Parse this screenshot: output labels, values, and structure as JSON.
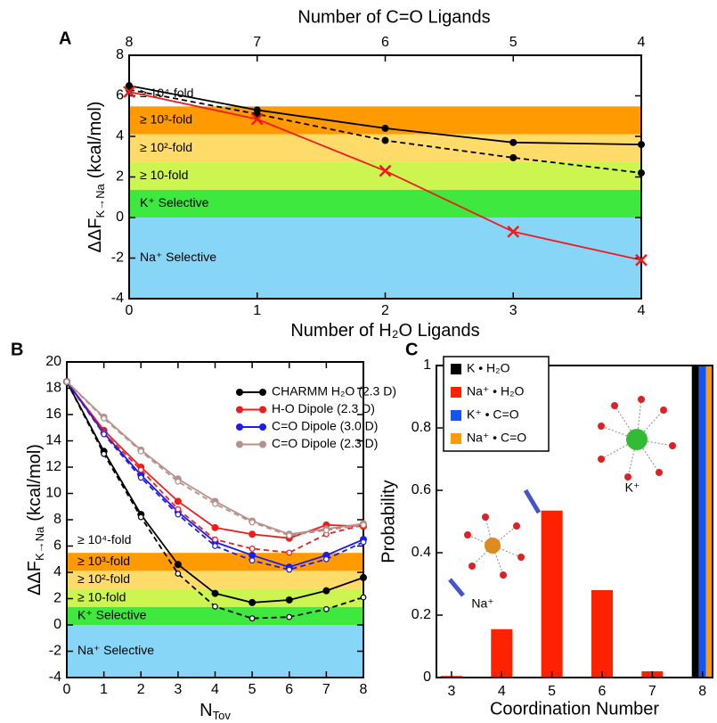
{
  "chart_data": [
    {
      "type": "line",
      "panel_label": "A",
      "x2label": "Number of C=O Ligands",
      "xlabel": "Number of H₂O Ligands",
      "ylabel": "ΔΔF",
      "ylabel_sub": "K→Na",
      "ylabel_unit": "(kcal/mol)",
      "x": [
        0,
        1,
        2,
        3,
        4
      ],
      "xlim": [
        0,
        4
      ],
      "xticks": [
        0,
        1,
        2,
        3,
        4
      ],
      "x2ticks": [
        {
          "value": 0,
          "label": "8"
        },
        {
          "value": 1,
          "label": "7"
        },
        {
          "value": 2,
          "label": "6"
        },
        {
          "value": 3,
          "label": "5"
        },
        {
          "value": 4,
          "label": "4"
        }
      ],
      "ylim": [
        -4,
        8
      ],
      "yticks": [
        -4,
        -2,
        0,
        2,
        4,
        6,
        8
      ],
      "bands": [
        {
          "label": "Na⁺ Selective",
          "from": -4,
          "to": 0,
          "color": "#87d5f7"
        },
        {
          "label": "K⁺ Selective",
          "from": 0,
          "to": 1.37,
          "color": "#3ee83e"
        },
        {
          "label": "≥ 10-fold",
          "from": 1.37,
          "to": 2.74,
          "color": "#cdf550"
        },
        {
          "label": "≥ 10²-fold",
          "from": 2.74,
          "to": 4.11,
          "color": "#ffdc6a"
        },
        {
          "label": "≥ 10³-fold",
          "from": 4.11,
          "to": 5.48,
          "color": "#ff9a00"
        },
        {
          "label": "≥ 10⁴-fold",
          "from": 5.48,
          "to": null,
          "color": null
        }
      ],
      "series": [
        {
          "color": "#000000",
          "marker": "circle",
          "line_style": "solid",
          "values": [
            6.5,
            5.3,
            4.4,
            3.7,
            3.6
          ]
        },
        {
          "color": "#000000",
          "marker": "circle",
          "line_style": "dashed",
          "values": [
            6.3,
            5.1,
            3.8,
            2.95,
            2.2
          ]
        },
        {
          "color": "#ee1c1c",
          "marker": "x",
          "line_style": "solid",
          "values": [
            6.2,
            4.85,
            2.3,
            -0.7,
            -2.1
          ]
        }
      ]
    },
    {
      "type": "line",
      "panel_label": "B",
      "xlabel": "N",
      "xlabel_sub": "Tov",
      "ylabel": "ΔΔF",
      "ylabel_sub": "K→Na",
      "ylabel_unit": "(kcal/mol)",
      "x": [
        0,
        1,
        2,
        3,
        4,
        5,
        6,
        7,
        8
      ],
      "xlim": [
        0,
        8
      ],
      "xticks": [
        0,
        1,
        2,
        3,
        4,
        5,
        6,
        7,
        8
      ],
      "ylim": [
        -4,
        20
      ],
      "yticks": [
        -4,
        -2,
        0,
        2,
        4,
        6,
        8,
        10,
        12,
        14,
        16,
        18,
        20
      ],
      "bands": [
        {
          "label": "Na⁺ Selective",
          "from": -4,
          "to": 0,
          "color": "#87d5f7"
        },
        {
          "label": "K⁺ Selective",
          "from": 0,
          "to": 1.37,
          "color": "#3ee83e"
        },
        {
          "label": "≥ 10-fold",
          "from": 1.37,
          "to": 2.74,
          "color": "#cdf550"
        },
        {
          "label": "≥ 10²-fold",
          "from": 2.74,
          "to": 4.11,
          "color": "#ffdc6a"
        },
        {
          "label": "≥ 10³-fold",
          "from": 4.11,
          "to": 5.48,
          "color": "#ff9a00"
        },
        {
          "label": "≥ 10⁴-fold",
          "from": 5.48,
          "to": null,
          "color": null
        }
      ],
      "legend": "upper right",
      "series": [
        {
          "name": "CHARMM H₂O (2.3 D)",
          "color": "#000000",
          "marker": "circle",
          "line_style": "solid",
          "values": [
            18.5,
            13.2,
            8.4,
            4.6,
            2.4,
            1.7,
            1.9,
            2.6,
            3.6
          ]
        },
        {
          "name": "H-O Dipole (2.3 D)",
          "color": "#ee1c1c",
          "marker": "circle",
          "line_style": "solid",
          "values": [
            18.5,
            14.8,
            12.0,
            9.4,
            7.4,
            6.9,
            6.6,
            7.6,
            7.5
          ]
        },
        {
          "name": "C=O Dipole (3.0 D)",
          "color": "#1c1cee",
          "marker": "circle",
          "line_style": "solid",
          "values": [
            18.5,
            14.6,
            11.4,
            8.6,
            6.3,
            5.3,
            4.4,
            5.3,
            6.5
          ]
        },
        {
          "name": "C=O Dipole (2.3 D)",
          "color": "#b8908a",
          "marker": "circle",
          "line_style": "solid",
          "values": [
            18.5,
            15.8,
            13.3,
            11.1,
            9.4,
            7.9,
            6.9,
            7.3,
            7.7
          ]
        },
        {
          "color": "#000000",
          "marker": "open-circle",
          "line_style": "dashed",
          "values": [
            18.5,
            13.0,
            8.2,
            3.9,
            1.4,
            0.5,
            0.6,
            1.2,
            2.1
          ]
        },
        {
          "color": "#ee1c1c",
          "marker": "open-circle",
          "line_style": "dashed",
          "values": [
            18.5,
            14.6,
            11.8,
            8.8,
            6.5,
            5.8,
            5.5,
            6.9,
            7.6
          ]
        },
        {
          "color": "#1c1cee",
          "marker": "open-circle",
          "line_style": "dashed",
          "values": [
            18.5,
            14.5,
            11.2,
            8.4,
            6.0,
            4.9,
            4.2,
            5.0,
            6.3
          ]
        },
        {
          "color": "#b8908a",
          "marker": "open-circle",
          "line_style": "dashed",
          "values": [
            18.5,
            15.7,
            13.2,
            10.9,
            9.2,
            7.8,
            6.8,
            7.2,
            7.6
          ]
        }
      ]
    },
    {
      "type": "bar",
      "panel_label": "C",
      "xlabel": "Coordination Number",
      "ylabel": "Probability",
      "x": [
        3,
        4,
        5,
        6,
        7,
        8
      ],
      "xlim": [
        2.7,
        8.2
      ],
      "xticks": [
        3,
        4,
        5,
        6,
        7,
        8
      ],
      "ylim": [
        0,
        1
      ],
      "yticks": [
        0,
        0.2,
        0.4,
        0.6,
        0.8,
        1
      ],
      "legend": "upper left",
      "series": [
        {
          "name": "K • H₂O",
          "color": "#000000",
          "values": [
            null,
            null,
            null,
            null,
            null,
            1
          ]
        },
        {
          "name": "Na⁺ • H₂O",
          "color": "#ff2200",
          "values": [
            0.005,
            0.155,
            0.535,
            0.28,
            0.02,
            null
          ]
        },
        {
          "name": "K⁺ • C=O",
          "color": "#1155ff",
          "values": [
            null,
            null,
            null,
            null,
            null,
            1
          ]
        },
        {
          "name": "Na⁺ • C=O",
          "color": "#ff9a00",
          "values": [
            null,
            null,
            null,
            null,
            null,
            1
          ]
        }
      ],
      "annotations": [
        "Na⁺",
        "K⁺"
      ]
    }
  ]
}
